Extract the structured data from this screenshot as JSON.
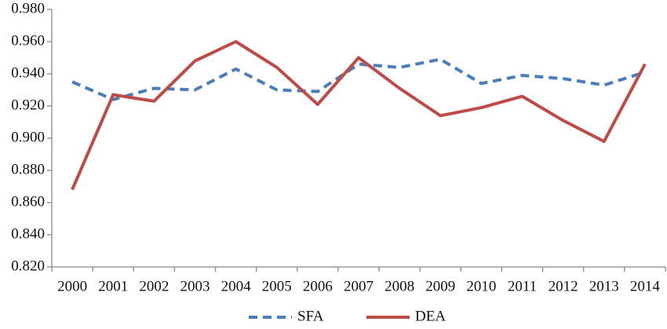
{
  "chart_data": {
    "type": "line",
    "categories": [
      "2000",
      "2001",
      "2002",
      "2003",
      "2004",
      "2005",
      "2006",
      "2007",
      "2008",
      "2009",
      "2010",
      "2011",
      "2012",
      "2013",
      "2014"
    ],
    "series": [
      {
        "name": "SFA",
        "color": "#4a7ebb",
        "line_style": "dashed",
        "values": [
          0.935,
          0.924,
          0.931,
          0.93,
          0.943,
          0.93,
          0.929,
          0.946,
          0.944,
          0.949,
          0.934,
          0.939,
          0.937,
          0.933,
          0.941
        ]
      },
      {
        "name": "DEA",
        "color": "#be4b48",
        "line_style": "solid",
        "values": [
          0.868,
          0.927,
          0.923,
          0.948,
          0.96,
          0.944,
          0.921,
          0.95,
          0.931,
          0.914,
          0.919,
          0.926,
          0.911,
          0.898,
          0.946
        ]
      }
    ],
    "ylim": [
      0.82,
      0.98
    ],
    "yticks": [
      {
        "value": 0.82,
        "label": "0.820"
      },
      {
        "value": 0.84,
        "label": "0.840"
      },
      {
        "value": 0.86,
        "label": "0.860"
      },
      {
        "value": 0.88,
        "label": "0.880"
      },
      {
        "value": 0.9,
        "label": "0.900"
      },
      {
        "value": 0.92,
        "label": "0.920"
      },
      {
        "value": 0.94,
        "label": "0.940"
      },
      {
        "value": 0.96,
        "label": "0.960"
      },
      {
        "value": 0.98,
        "label": "0.980"
      }
    ],
    "grid": false,
    "legend": "bottom"
  }
}
